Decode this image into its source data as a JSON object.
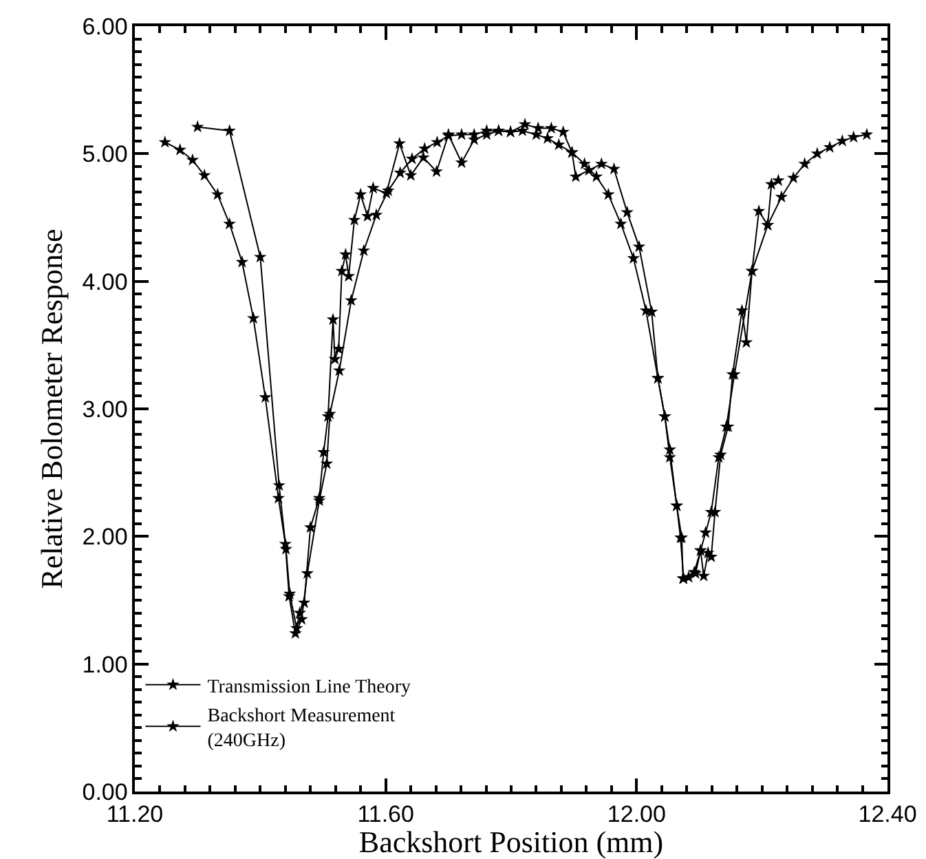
{
  "chart_data": {
    "type": "line",
    "xlabel": "Backshort Position (mm)",
    "ylabel": "Relative Bolometer Response",
    "xlim": [
      11.2,
      12.4
    ],
    "ylim": [
      0,
      6
    ],
    "xticks": [
      {
        "value": 11.2,
        "label": "11.20"
      },
      {
        "value": 11.6,
        "label": "11.60"
      },
      {
        "value": 12.0,
        "label": "12.00"
      },
      {
        "value": 12.4,
        "label": "12.40"
      }
    ],
    "yticks": [
      {
        "value": 0,
        "label": "0.00"
      },
      {
        "value": 1,
        "label": "1.00"
      },
      {
        "value": 2,
        "label": "2.00"
      },
      {
        "value": 3,
        "label": "3.00"
      },
      {
        "value": 4,
        "label": "4.00"
      },
      {
        "value": 5,
        "label": "5.00"
      },
      {
        "value": 6,
        "label": "6.00"
      }
    ],
    "grid": false,
    "legend": "bottom left",
    "marker": "star",
    "line_style": "solid",
    "series": [
      {
        "name": "Transmission Line Theory",
        "color": "#000000",
        "x": [
          11.248,
          11.272,
          11.292,
          11.311,
          11.332,
          11.351,
          11.371,
          11.389,
          11.408,
          11.429,
          11.44,
          11.446,
          11.456,
          11.466,
          11.475,
          11.494,
          11.506,
          11.511,
          11.526,
          11.545,
          11.565,
          11.585,
          11.604,
          11.623,
          11.642,
          11.662,
          11.682,
          11.7,
          11.721,
          11.741,
          11.761,
          11.78,
          11.799,
          11.818,
          11.84,
          11.858,
          11.876,
          11.897,
          11.917,
          11.936,
          11.955,
          11.975,
          11.995,
          12.015,
          12.034,
          12.045,
          12.053,
          12.064,
          12.07,
          12.075,
          12.092,
          12.102,
          12.11,
          12.119,
          12.131,
          12.143,
          12.156,
          12.184,
          12.209,
          12.231,
          12.25,
          12.268,
          12.288,
          12.308,
          12.328,
          12.346,
          12.367
        ],
        "values": [
          5.09,
          5.03,
          4.95,
          4.83,
          4.68,
          4.45,
          4.15,
          3.71,
          3.09,
          2.3,
          1.94,
          1.53,
          1.24,
          1.35,
          1.71,
          2.28,
          2.57,
          2.96,
          3.3,
          3.85,
          4.24,
          4.52,
          4.71,
          4.85,
          4.96,
          5.04,
          5.09,
          5.14,
          5.15,
          5.15,
          5.18,
          5.18,
          5.17,
          5.18,
          5.15,
          5.12,
          5.07,
          5.01,
          4.92,
          4.82,
          4.68,
          4.45,
          4.18,
          3.77,
          3.24,
          2.94,
          2.68,
          2.24,
          1.99,
          1.67,
          1.72,
          1.89,
          2.03,
          2.19,
          2.62,
          2.86,
          3.27,
          4.08,
          4.44,
          4.66,
          4.81,
          4.92,
          5.0,
          5.05,
          5.1,
          5.13,
          5.15
        ]
      },
      {
        "name": "Backshort Measurement\n(240GHz)",
        "color": "#000000",
        "x": [
          11.3,
          11.351,
          11.4,
          11.43,
          11.441,
          11.447,
          11.458,
          11.463,
          11.47,
          11.48,
          11.494,
          11.501,
          11.508,
          11.516,
          11.519,
          11.525,
          11.53,
          11.536,
          11.541,
          11.55,
          11.56,
          11.571,
          11.58,
          11.601,
          11.622,
          11.64,
          11.66,
          11.681,
          11.7,
          11.721,
          11.741,
          11.761,
          11.78,
          11.799,
          11.822,
          11.843,
          11.864,
          11.883,
          11.897,
          11.903,
          11.924,
          11.944,
          11.964,
          11.985,
          12.004,
          12.024,
          12.034,
          12.045,
          12.053,
          12.064,
          12.072,
          12.074,
          12.083,
          12.094,
          12.102,
          12.107,
          12.114,
          12.119,
          12.125,
          12.134,
          12.146,
          12.153,
          12.168,
          12.175,
          12.184,
          12.195,
          12.209,
          12.215,
          12.226
        ],
        "values": [
          5.21,
          5.18,
          4.19,
          2.4,
          1.9,
          1.55,
          1.28,
          1.4,
          1.48,
          2.07,
          2.3,
          2.66,
          2.94,
          3.7,
          3.39,
          3.47,
          4.08,
          4.21,
          4.04,
          4.48,
          4.68,
          4.51,
          4.73,
          4.69,
          5.08,
          4.83,
          4.97,
          4.86,
          5.15,
          4.93,
          5.11,
          5.15,
          5.18,
          5.17,
          5.23,
          5.2,
          5.2,
          5.17,
          5.01,
          4.82,
          4.87,
          4.92,
          4.88,
          4.54,
          4.27,
          3.76,
          3.24,
          2.94,
          2.62,
          2.24,
          1.99,
          1.67,
          1.68,
          1.71,
          1.89,
          1.69,
          1.87,
          1.84,
          2.19,
          2.64,
          2.86,
          3.27,
          3.77,
          3.52,
          4.08,
          4.55,
          4.44,
          4.76,
          4.79
        ]
      }
    ]
  }
}
